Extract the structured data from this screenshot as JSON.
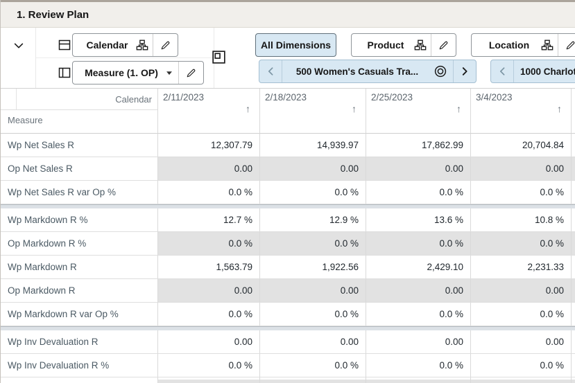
{
  "title": "1. Review Plan",
  "toolbar": {
    "calendar_label": "Calendar",
    "measure_label": "Measure (1. OP)",
    "all_dimensions_label": "All Dimensions",
    "product_label": "Product",
    "location_label": "Location",
    "product_tile_label": "500 Women's Casuals Tra...",
    "location_tile_label": "1000 Charlot"
  },
  "grid": {
    "corner_top_label": "Calendar",
    "corner_bottom_label": "Measure",
    "sort_indicator": "↑",
    "columns": [
      "2/11/2023",
      "2/18/2023",
      "2/25/2023",
      "3/4/2023"
    ],
    "rows": [
      {
        "label": "Wp Net Sales R",
        "values": [
          "12,307.79",
          "14,939.97",
          "17,862.99",
          "20,704.84"
        ],
        "shaded": false,
        "group_end": false
      },
      {
        "label": "Op Net Sales R",
        "values": [
          "0.00",
          "0.00",
          "0.00",
          "0.00"
        ],
        "shaded": true,
        "group_end": false
      },
      {
        "label": "Wp Net Sales R var Op %",
        "values": [
          "0.0 %",
          "0.0 %",
          "0.0 %",
          "0.0 %"
        ],
        "shaded": false,
        "group_end": true
      },
      {
        "label": "Wp Markdown R %",
        "values": [
          "12.7 %",
          "12.9 %",
          "13.6 %",
          "10.8 %"
        ],
        "shaded": false,
        "group_end": false
      },
      {
        "label": "Op Markdown R %",
        "values": [
          "0.0 %",
          "0.0 %",
          "0.0 %",
          "0.0 %"
        ],
        "shaded": true,
        "group_end": false
      },
      {
        "label": "Wp Markdown R",
        "values": [
          "1,563.79",
          "1,922.56",
          "2,429.10",
          "2,231.33"
        ],
        "shaded": false,
        "group_end": false
      },
      {
        "label": "Op Markdown R",
        "values": [
          "0.00",
          "0.00",
          "0.00",
          "0.00"
        ],
        "shaded": true,
        "group_end": false
      },
      {
        "label": "Wp Markdown R var Op %",
        "values": [
          "0.0 %",
          "0.0 %",
          "0.0 %",
          "0.0 %"
        ],
        "shaded": false,
        "group_end": true
      },
      {
        "label": "Wp Inv Devaluation R",
        "values": [
          "0.00",
          "0.00",
          "0.00",
          "0.00"
        ],
        "shaded": false,
        "group_end": false
      },
      {
        "label": "Wp Inv Devaluation R %",
        "values": [
          "0.0 %",
          "0.0 %",
          "0.0 %",
          "0.0 %"
        ],
        "shaded": false,
        "group_end": false
      }
    ]
  },
  "colors": {
    "accent_tile_bg": "#d8e8f3",
    "shaded_cell_bg": "#e2e2e2",
    "titlebar_bg": "#f1efeb",
    "grid_line": "#d9d9d9"
  }
}
